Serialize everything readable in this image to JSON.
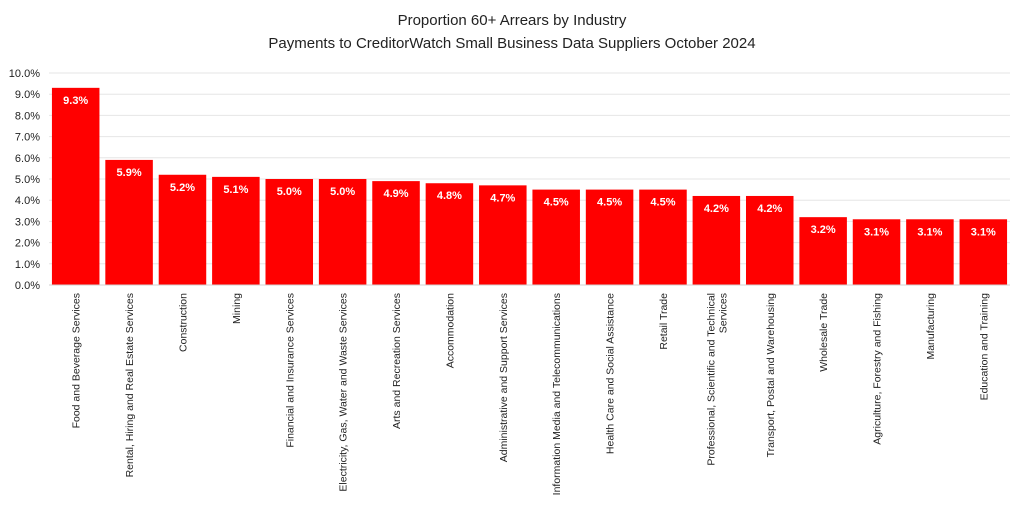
{
  "chart_data": {
    "type": "bar",
    "title": "Proportion 60+ Arrears by Industry",
    "subtitle": "Payments to CreditorWatch Small Business Data Suppliers October 2024",
    "xlabel": "",
    "ylabel": "",
    "ylim": [
      0,
      10
    ],
    "y_ticks": [
      "0.0%",
      "1.0%",
      "2.0%",
      "3.0%",
      "4.0%",
      "5.0%",
      "6.0%",
      "7.0%",
      "8.0%",
      "9.0%",
      "10.0%"
    ],
    "grid": true,
    "bar_color": "#ff0000",
    "categories": [
      "Food and Beverage Services",
      "Rental, Hiring and Real Estate Services",
      "Construction",
      "Mining",
      "Financial and Insurance Services",
      "Electricity, Gas, Water and Waste Services",
      "Arts and Recreation Services",
      "Accommodation",
      "Administrative and Support Services",
      "Information Media and Telecommunications",
      "Health Care and Social Assistance",
      "Retail Trade",
      "Professional, Scientific and Technical Services",
      "Transport, Postal and Warehousing",
      "Wholesale Trade",
      "Agriculture, Forestry and Fishing",
      "Manufacturing",
      "Education and Training"
    ],
    "values": [
      9.3,
      5.9,
      5.2,
      5.1,
      5.0,
      5.0,
      4.9,
      4.8,
      4.7,
      4.5,
      4.5,
      4.5,
      4.2,
      4.2,
      3.2,
      3.1,
      3.1,
      3.1
    ],
    "data_labels": [
      "9.3%",
      "5.9%",
      "5.2%",
      "5.1%",
      "5.0%",
      "5.0%",
      "4.9%",
      "4.8%",
      "4.7%",
      "4.5%",
      "4.5%",
      "4.5%",
      "4.2%",
      "4.2%",
      "3.2%",
      "3.1%",
      "3.1%",
      "3.1%"
    ],
    "category_lines": [
      [
        "Food and Beverage Services"
      ],
      [
        "Rental, Hiring and Real Estate Services"
      ],
      [
        "Construction"
      ],
      [
        "Mining"
      ],
      [
        "Financial and Insurance Services"
      ],
      [
        "Electricity, Gas, Water and Waste Services"
      ],
      [
        "Arts and Recreation Services"
      ],
      [
        "Accommodation"
      ],
      [
        "Administrative and Support Services"
      ],
      [
        "Information Media and Telecommunications"
      ],
      [
        "Health Care and Social Assistance"
      ],
      [
        "Retail Trade"
      ],
      [
        "Professional, Scientific and Technical",
        "Services"
      ],
      [
        "Transport, Postal and Warehousing"
      ],
      [
        "Wholesale Trade"
      ],
      [
        "Agriculture, Forestry and Fishing"
      ],
      [
        "Manufacturing"
      ],
      [
        "Education and Training"
      ]
    ]
  }
}
